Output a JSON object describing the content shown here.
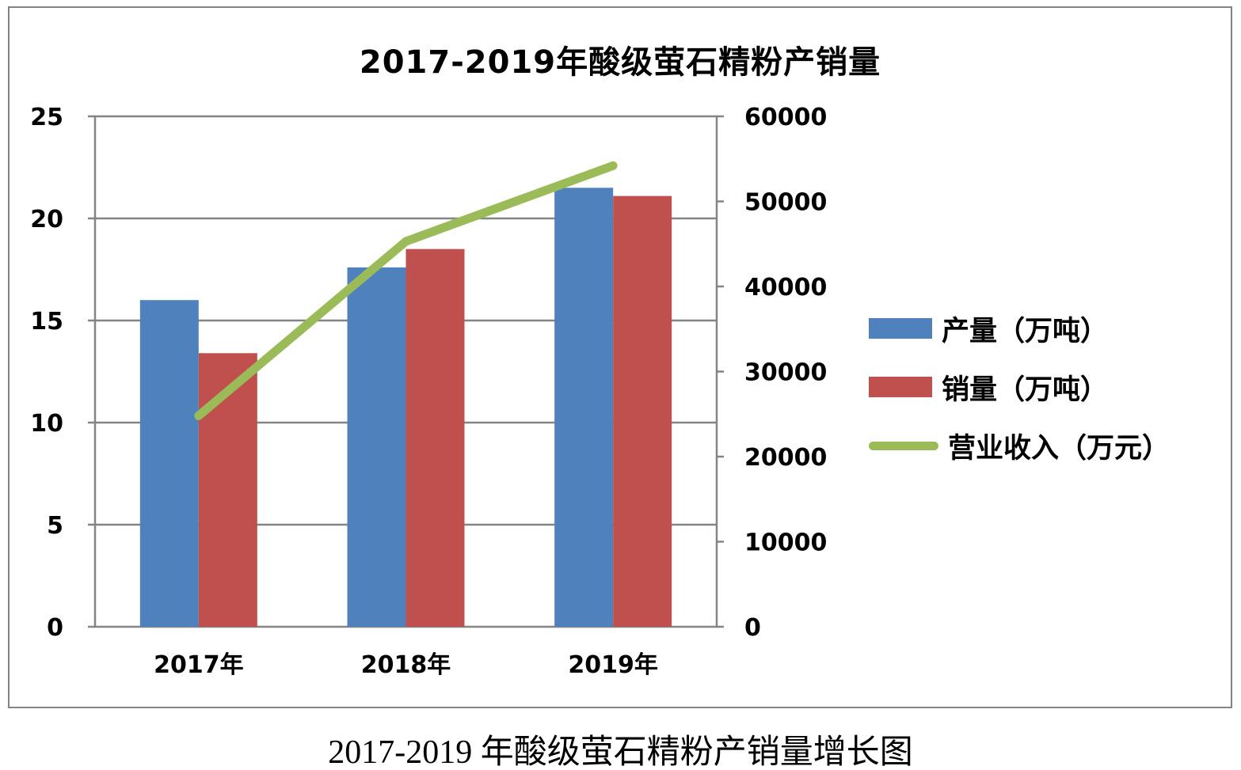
{
  "chart_data": {
    "type": "bar",
    "subtype": "bar-line-combo",
    "title": "2017-2019年酸级萤石精粉产销量",
    "categories": [
      "2017年",
      "2018年",
      "2019年"
    ],
    "series": [
      {
        "id": "production",
        "name": "产量（万吨）",
        "kind": "bar",
        "axis": "left",
        "color": "#4F81BD",
        "values": [
          16.0,
          17.6,
          21.5
        ]
      },
      {
        "id": "sales",
        "name": "销量（万吨）",
        "kind": "bar",
        "axis": "left",
        "color": "#C0504D",
        "values": [
          13.4,
          18.5,
          21.1
        ]
      },
      {
        "id": "revenue",
        "name": "营业收入（万元）",
        "kind": "line",
        "axis": "right",
        "color": "#9BBB59",
        "values": [
          24800,
          45300,
          54200
        ]
      }
    ],
    "left_axis": {
      "min": 0,
      "max": 25,
      "step": 5,
      "ticks": [
        0,
        5,
        10,
        15,
        20,
        25
      ]
    },
    "right_axis": {
      "min": 0,
      "max": 60000,
      "step": 10000,
      "ticks": [
        0,
        10000,
        20000,
        30000,
        40000,
        50000,
        60000
      ]
    },
    "grid": true,
    "legend_position": "right",
    "axis_color": "#848484"
  },
  "caption": "2017-2019 年酸级萤石精粉产销量增长图"
}
